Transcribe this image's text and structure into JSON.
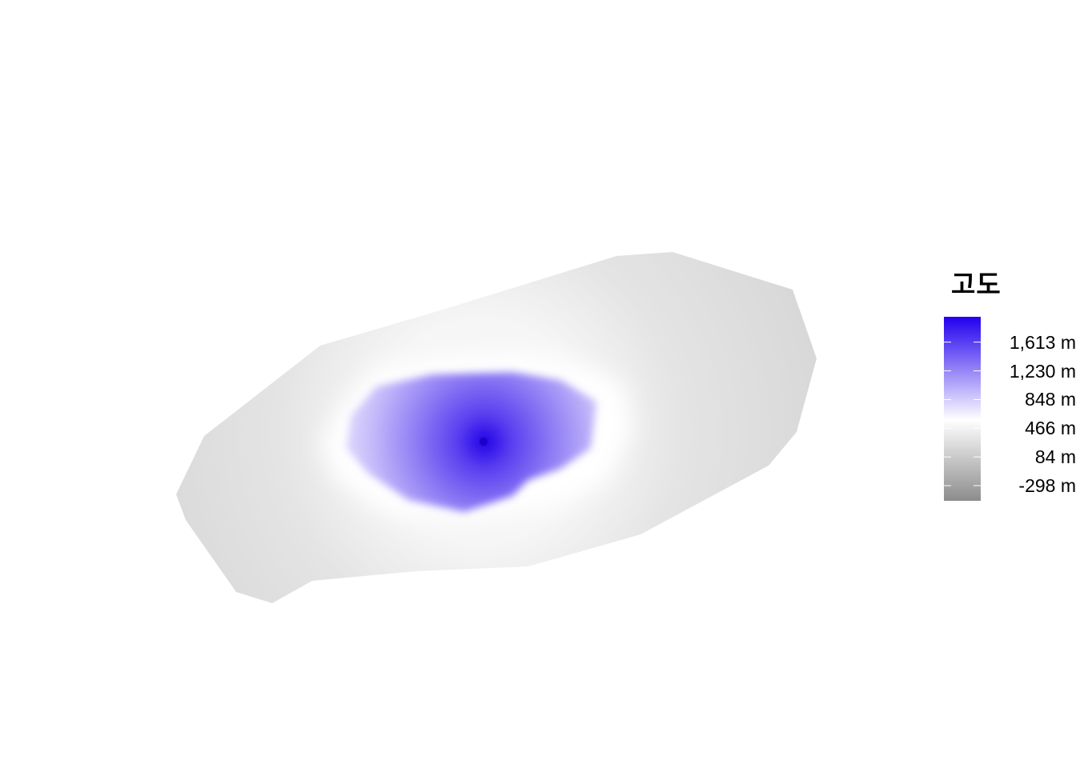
{
  "map": {
    "legend": {
      "title": "고도",
      "unit": "m",
      "min": -500,
      "max": 1950,
      "ticks": [
        {
          "value": 1613,
          "label": "1,613 m"
        },
        {
          "value": 1230,
          "label": "1,230 m"
        },
        {
          "value": 848,
          "label": "848 m"
        },
        {
          "value": 466,
          "label": "466 m"
        },
        {
          "value": 84,
          "label": "84 m"
        },
        {
          "value": -298,
          "label": "-298 m"
        }
      ],
      "colors": {
        "low": "#8c8c8c",
        "mid": "#ffffff",
        "high": "#2200ee"
      }
    }
  }
}
